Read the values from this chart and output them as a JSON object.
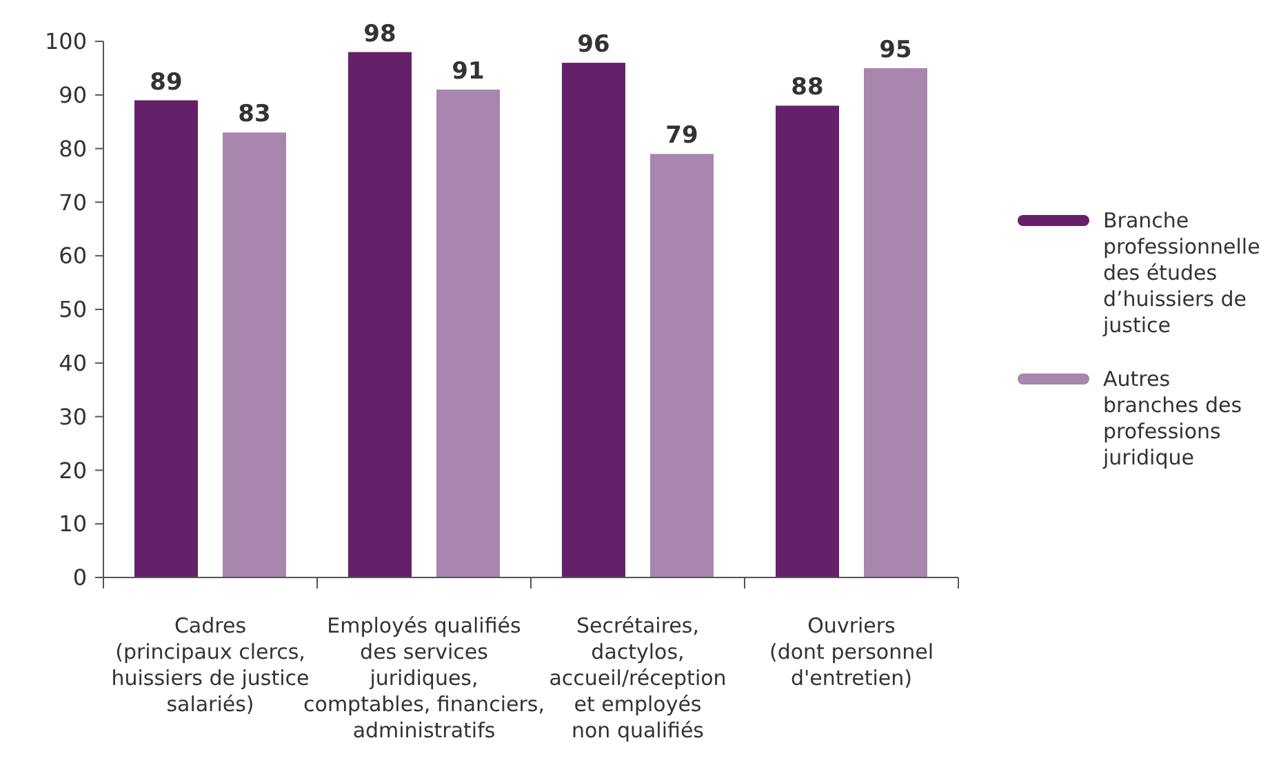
{
  "chart_data": {
    "type": "bar",
    "categories": [
      "Cadres\n(principaux clercs,\nhuissiers de justice\nsalariés)",
      "Employés qualifiés\ndes services\njuridiques,\ncomptables, financiers,\nadministratifs",
      "Secrétaires,\ndactylos,\naccueil/réception\net employés\nnon qualifiés",
      "Ouvriers\n(dont personnel\nd'entretien)"
    ],
    "series": [
      {
        "name": "Branche professionnelle des études d’huissiers de justice",
        "color": "#65206a",
        "values": [
          89,
          98,
          96,
          88
        ]
      },
      {
        "name": "Autres branches des professions juridique",
        "color": "#a886ad",
        "values": [
          83,
          91,
          79,
          95
        ]
      }
    ],
    "ylim": [
      0,
      100
    ],
    "yticks": [
      0,
      10,
      20,
      30,
      40,
      50,
      60,
      70,
      80,
      90,
      100
    ],
    "data_labels": true,
    "legend": "right",
    "grid": false
  }
}
